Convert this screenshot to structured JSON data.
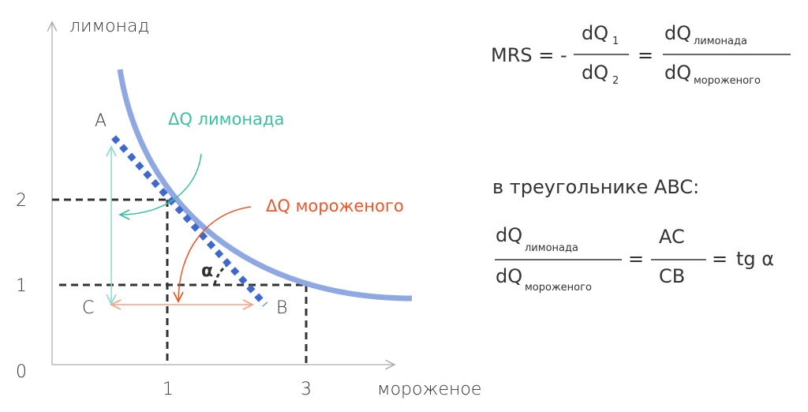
{
  "axes": {
    "y_label": "лимонад",
    "x_label": "мороженое",
    "origin": "0",
    "y_ticks": [
      "2",
      "1"
    ],
    "x_ticks": [
      "1",
      "3"
    ]
  },
  "points": {
    "a": "A",
    "b": "B",
    "c": "C",
    "alpha": "α"
  },
  "annotations": {
    "dq_lemonade": "ΔQ лимонада",
    "dq_icecream": "ΔQ мороженого"
  },
  "formula1": {
    "lhs": "MRS = -",
    "num": "dQ",
    "num_sub": "1",
    "den": "dQ",
    "den_sub": "2",
    "eq": "=",
    "num2": "dQ",
    "num2_sub": "лимонада",
    "den2": "dQ",
    "den2_sub": "мороженого"
  },
  "caption": "в треугольнике ABC:",
  "formula2": {
    "num": "dQ",
    "num_sub": "лимонада",
    "den": "dQ",
    "den_sub": "мороженого",
    "eq1": "=",
    "num2": "AC",
    "den2": "CB",
    "eq2": "=",
    "result": "tg α"
  },
  "colors": {
    "curve": "#8fa8e2",
    "dots": "#3f68cc",
    "green": "#3dbf9f",
    "orange": "#e8582a",
    "orange_light": "#f2a384",
    "green_light": "#8fdcc8"
  }
}
